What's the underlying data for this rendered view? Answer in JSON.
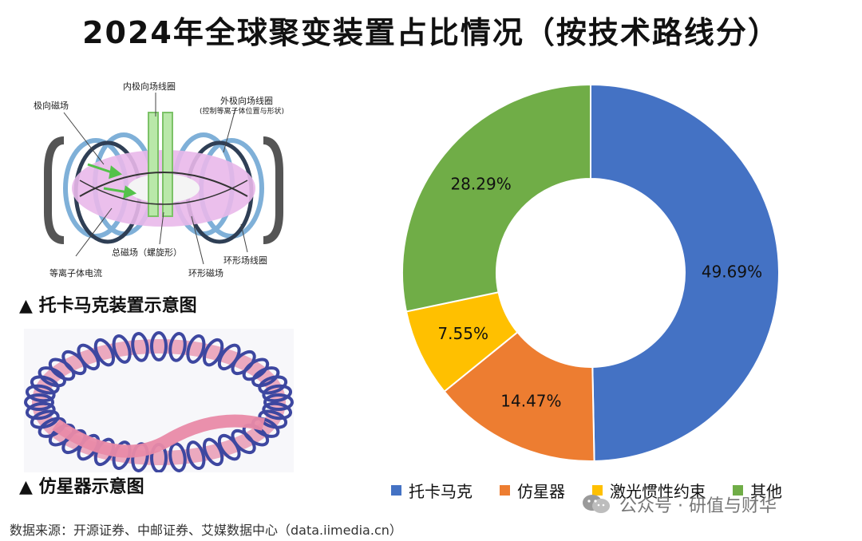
{
  "title": "2024年全球聚变装置占比情况（按技术路线分）",
  "diagram1": {
    "caption": "▲ 托卡马克装置示意图",
    "labels": {
      "inner_coil": "内极向场线圈",
      "outer_coil": "外极向场线圈",
      "outer_coil_note": "(控制等离子体位置与形状)",
      "poloidal_field": "极向磁场",
      "total_field": "总磁场（螺旋形）",
      "plasma_current": "等离子体电流",
      "toroidal_field": "环形磁场",
      "toroidal_coil": "环形场线圈"
    }
  },
  "diagram2": {
    "caption": "▲ 仿星器示意图"
  },
  "source": "数据来源：开源证券、中邮证券、艾媒数据中心（data.iimedia.cn）",
  "watermark": "公众号 · 研值与财华",
  "watermark_icon": "wechat-icon",
  "chart_data": {
    "type": "pie",
    "donut": true,
    "categories": [
      "托卡马克",
      "仿星器",
      "激光惯性约束",
      "其他"
    ],
    "values": [
      49.69,
      14.47,
      7.55,
      28.29
    ],
    "labels": [
      "49.69%",
      "14.47%",
      "7.55%",
      "28.29%"
    ],
    "colors": [
      "#4472C4",
      "#ED7D31",
      "#FFC000",
      "#70AD47"
    ],
    "legend_position": "bottom"
  }
}
